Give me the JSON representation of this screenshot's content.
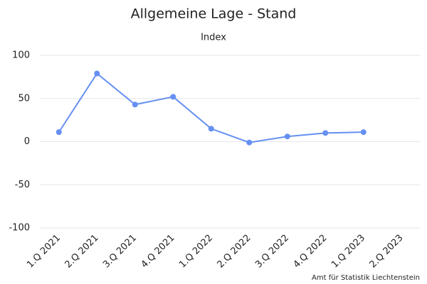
{
  "chart_data": {
    "type": "line",
    "title": "Allgemeine Lage - Stand",
    "subtitle": "Index",
    "credit": "Amt für Statistik Liechtenstein",
    "categories": [
      "1.Q 2021",
      "2.Q 2021",
      "3.Q 2021",
      "4.Q 2021",
      "1.Q 2022",
      "2.Q 2022",
      "3.Q 2022",
      "4.Q 2022",
      "1.Q 2023",
      "2.Q 2023"
    ],
    "series": [
      {
        "color": "#6590f2",
        "values": [
          11,
          79,
          43,
          52,
          15,
          -1,
          6,
          10,
          11,
          null
        ]
      }
    ],
    "ylim": [
      -100,
      100
    ],
    "yticks": [
      -100,
      -50,
      0,
      50,
      100
    ],
    "grid": true
  }
}
